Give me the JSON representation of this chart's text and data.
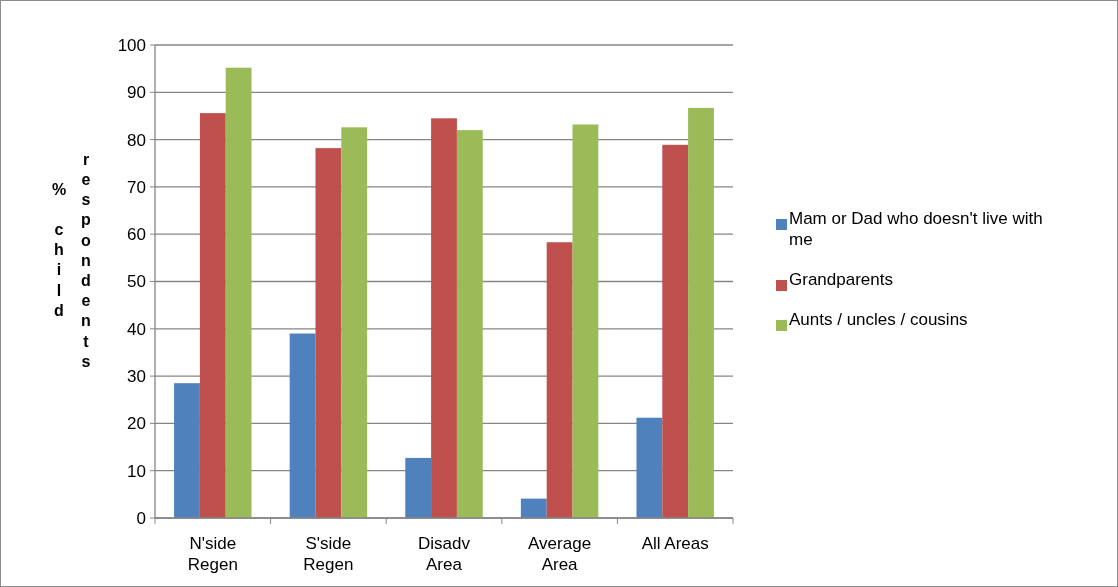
{
  "chart_data": {
    "type": "bar",
    "ylabel": "% child respondents",
    "categories": [
      "N'side\nRegen",
      "S'side\nRegen",
      "Disadv\nArea",
      "Average\nArea",
      "All Areas"
    ],
    "series": [
      {
        "name": "Mam or Dad who doesn't live with me",
        "color": "#4f81bd",
        "values": [
          28.5,
          39.0,
          12.7,
          4.1,
          21.2
        ]
      },
      {
        "name": "Grandparents",
        "color": "#c0504d",
        "values": [
          85.6,
          78.2,
          84.5,
          58.3,
          78.9
        ]
      },
      {
        "name": "Aunts / uncles / cousins",
        "color": "#9bbb59",
        "values": [
          95.2,
          82.6,
          82.0,
          83.2,
          86.7
        ]
      }
    ],
    "ylim": [
      0,
      100
    ],
    "yticks": [
      0,
      10,
      20,
      30,
      40,
      50,
      60,
      70,
      80,
      90,
      100
    ],
    "grid": "y",
    "legend": "right"
  }
}
